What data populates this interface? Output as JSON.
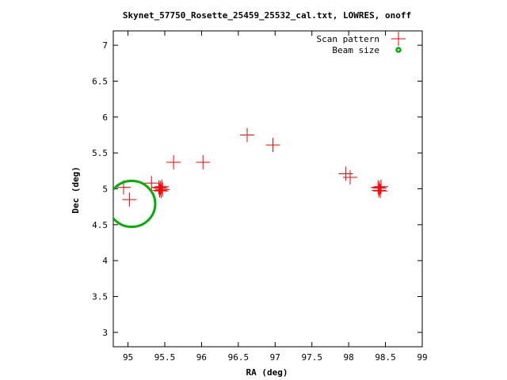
{
  "chart_data": {
    "type": "scatter",
    "title": "Skynet_57750_Rosette_25459_25532_cal.txt, LOWRES, onoff",
    "xlabel": "RA (deg)",
    "ylabel": "Dec (deg)",
    "xlim": [
      94.8,
      99.0
    ],
    "ylim": [
      2.8,
      7.2
    ],
    "xticks": [
      95,
      95.5,
      96,
      96.5,
      97,
      97.5,
      98,
      98.5,
      99
    ],
    "yticks": [
      3,
      3.5,
      4,
      4.5,
      5,
      5.5,
      6,
      6.5,
      7
    ],
    "grid": false,
    "legend_position": "top-right",
    "series": [
      {
        "name": "Scan pattern",
        "marker": "plus",
        "color": "#ff0000",
        "points": [
          {
            "x": 94.94,
            "y": 5.02
          },
          {
            "x": 95.02,
            "y": 4.85
          },
          {
            "x": 95.32,
            "y": 5.08
          },
          {
            "x": 95.42,
            "y": 5.02
          },
          {
            "x": 95.43,
            "y": 4.98
          },
          {
            "x": 95.44,
            "y": 5.01
          },
          {
            "x": 95.45,
            "y": 4.97
          },
          {
            "x": 95.46,
            "y": 5.03
          },
          {
            "x": 95.47,
            "y": 4.99
          },
          {
            "x": 95.62,
            "y": 5.37
          },
          {
            "x": 96.02,
            "y": 5.37
          },
          {
            "x": 96.62,
            "y": 5.75
          },
          {
            "x": 96.97,
            "y": 5.61
          },
          {
            "x": 97.96,
            "y": 5.21
          },
          {
            "x": 98.02,
            "y": 5.16
          },
          {
            "x": 98.4,
            "y": 5.02
          },
          {
            "x": 98.41,
            "y": 4.98
          },
          {
            "x": 98.42,
            "y": 5.01
          },
          {
            "x": 98.43,
            "y": 4.97
          },
          {
            "x": 98.44,
            "y": 5.03
          }
        ]
      },
      {
        "name": "Beam size",
        "marker": "circle",
        "color": "#00b000",
        "circle": {
          "center_x": 95.05,
          "center_y": 4.79,
          "radius_deg": 0.32
        }
      }
    ]
  }
}
